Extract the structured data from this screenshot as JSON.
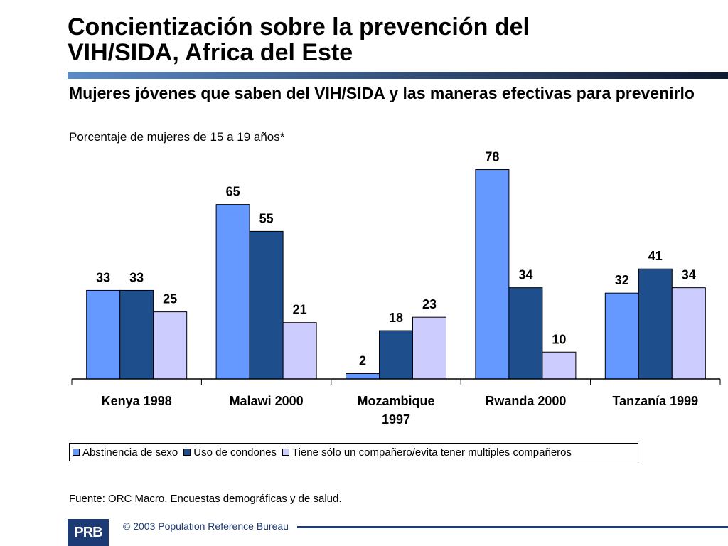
{
  "header": {
    "title_line1": "Concientización sobre la prevención del",
    "title_line2": "VIH/SIDA, Africa del Este",
    "subtitle": "Mujeres jóvenes que saben del VIH/SIDA y las maneras efectivas para prevenirlo",
    "unit_note": "Porcentaje de mujeres de 15 a 19 años*"
  },
  "colors": {
    "title_bar_gradient_start": "#5b8ac7",
    "title_bar_gradient_end": "#0d1a33",
    "series_abstinence": "#6699ff",
    "series_condoms": "#1f4e8c",
    "series_one_partner": "#ccccff",
    "logo_bg": "#1c3a73"
  },
  "chart_data": {
    "type": "bar",
    "title": "",
    "xlabel": "",
    "ylabel": "",
    "ylim": [
      0,
      85
    ],
    "grid": false,
    "legend_position": "bottom",
    "categories": [
      [
        "Kenya 1998"
      ],
      [
        "Malawi 2000"
      ],
      [
        "Mozambique",
        "1997"
      ],
      [
        "Rwanda 2000"
      ],
      [
        "Tanzanía 1999"
      ]
    ],
    "series": [
      {
        "name": "Abstinencia de sexo",
        "color": "#6699ff",
        "values": [
          33,
          65,
          2,
          78,
          32
        ]
      },
      {
        "name": "Uso de condones",
        "color": "#1f4e8c",
        "values": [
          33,
          55,
          18,
          34,
          41
        ]
      },
      {
        "name": "Tiene sólo un compañero/evita tener multiples compañeros",
        "color": "#ccccff",
        "values": [
          25,
          21,
          23,
          10,
          34
        ]
      }
    ]
  },
  "footer": {
    "source": "Fuente: ORC Macro, Encuestas demográficas y de salud.",
    "logo_text": "PRB",
    "copyright": "© 2003 Population Reference Bureau"
  }
}
